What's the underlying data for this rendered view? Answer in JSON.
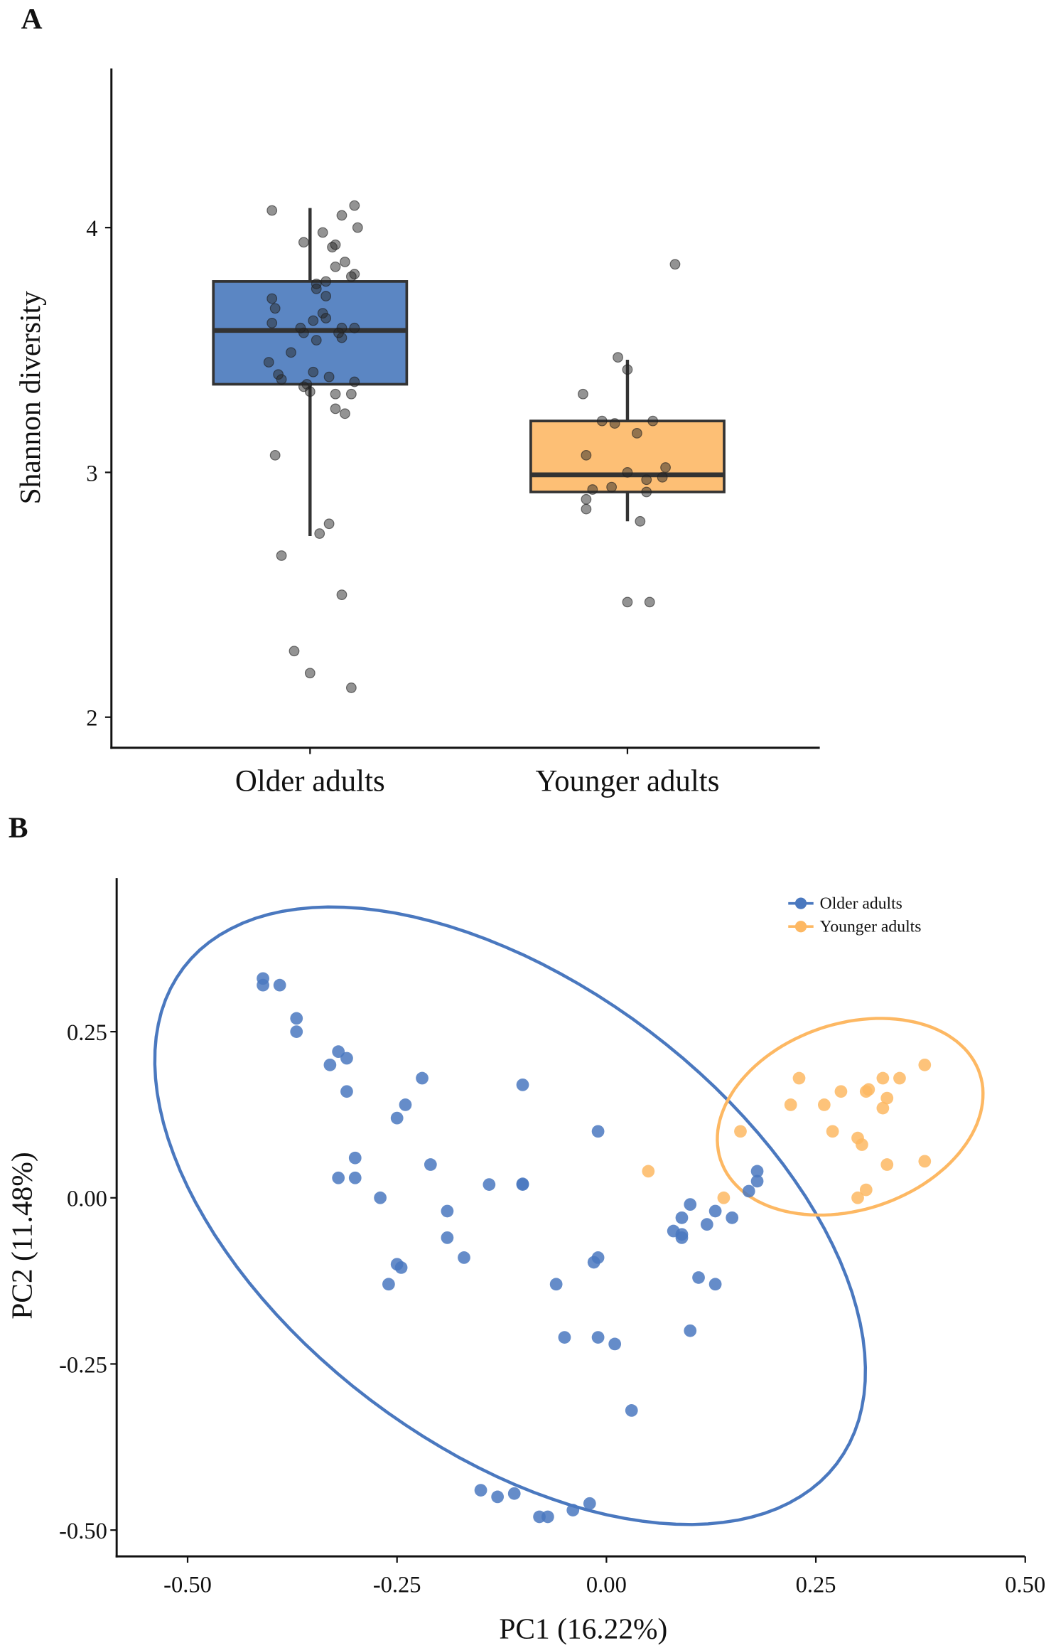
{
  "panel_labels": {
    "a": "A",
    "b": "B"
  },
  "chart_data": [
    {
      "type": "box",
      "panel": "A",
      "title": "",
      "xlabel": "",
      "ylabel": "Shannon diversity",
      "ylim": [
        1.875,
        4.65
      ],
      "yticks": [
        2,
        3,
        4
      ],
      "ytick_labels": [
        "2",
        "3",
        "4"
      ],
      "categories": [
        "Older adults",
        "Younger adults"
      ],
      "grid": false,
      "colors": {
        "Older adults": "#5b86c3",
        "Younger adults": "#fdbf75",
        "points": "#555555",
        "box_line": "#333333"
      },
      "boxes": [
        {
          "category": "Older adults",
          "whisker_low": 2.74,
          "q1": 3.36,
          "median": 3.58,
          "q3": 3.78,
          "whisker_high": 4.08
        },
        {
          "category": "Younger adults",
          "whisker_low": 2.8,
          "q1": 2.92,
          "median": 2.99,
          "q3": 3.21,
          "whisker_high": 3.46
        }
      ],
      "points": {
        "Older adults": [
          [
            -0.12,
            4.07
          ],
          [
            0.14,
            4.09
          ],
          [
            0.1,
            4.05
          ],
          [
            0.15,
            4.0
          ],
          [
            -0.02,
            3.94
          ],
          [
            0.04,
            3.98
          ],
          [
            0.07,
            3.92
          ],
          [
            0.08,
            3.93
          ],
          [
            0.11,
            3.86
          ],
          [
            0.08,
            3.84
          ],
          [
            0.14,
            3.81
          ],
          [
            0.13,
            3.8
          ],
          [
            0.05,
            3.78
          ],
          [
            0.02,
            3.77
          ],
          [
            0.02,
            3.75
          ],
          [
            -0.12,
            3.71
          ],
          [
            -0.11,
            3.67
          ],
          [
            0.05,
            3.72
          ],
          [
            0.04,
            3.65
          ],
          [
            0.01,
            3.62
          ],
          [
            -0.12,
            3.61
          ],
          [
            -0.02,
            3.57
          ],
          [
            -0.03,
            3.59
          ],
          [
            0.1,
            3.59
          ],
          [
            0.14,
            3.59
          ],
          [
            0.05,
            3.63
          ],
          [
            0.02,
            3.54
          ],
          [
            0.1,
            3.55
          ],
          [
            0.09,
            3.57
          ],
          [
            -0.06,
            3.49
          ],
          [
            -0.13,
            3.45
          ],
          [
            -0.1,
            3.4
          ],
          [
            -0.09,
            3.38
          ],
          [
            0.01,
            3.41
          ],
          [
            0.06,
            3.39
          ],
          [
            0.14,
            3.37
          ],
          [
            -0.01,
            3.36
          ],
          [
            -0.02,
            3.35
          ],
          [
            0.0,
            3.33
          ],
          [
            0.08,
            3.32
          ],
          [
            0.13,
            3.32
          ],
          [
            0.08,
            3.26
          ],
          [
            0.11,
            3.24
          ],
          [
            -0.11,
            3.07
          ],
          [
            0.06,
            2.79
          ],
          [
            0.03,
            2.75
          ],
          [
            -0.09,
            2.66
          ],
          [
            0.1,
            2.5
          ],
          [
            -0.05,
            2.27
          ],
          [
            0.0,
            2.18
          ],
          [
            0.13,
            2.12
          ]
        ],
        "Younger adults": [
          [
            0.15,
            3.85
          ],
          [
            -0.03,
            3.47
          ],
          [
            0.0,
            3.42
          ],
          [
            -0.14,
            3.32
          ],
          [
            -0.08,
            3.21
          ],
          [
            -0.04,
            3.2
          ],
          [
            0.08,
            3.21
          ],
          [
            0.03,
            3.16
          ],
          [
            -0.13,
            3.07
          ],
          [
            0.12,
            3.02
          ],
          [
            0.0,
            3.0
          ],
          [
            0.11,
            2.98
          ],
          [
            0.06,
            2.97
          ],
          [
            -0.05,
            2.94
          ],
          [
            -0.11,
            2.93
          ],
          [
            0.06,
            2.92
          ],
          [
            -0.13,
            2.89
          ],
          [
            -0.13,
            2.85
          ],
          [
            0.04,
            2.8
          ],
          [
            0.0,
            2.47
          ],
          [
            0.07,
            2.47
          ]
        ]
      }
    },
    {
      "type": "scatter",
      "panel": "B",
      "title": "",
      "xlabel": "PC1 (16.22%)",
      "ylabel": "PC2 (11.48%)",
      "xlim": [
        -0.585,
        0.5
      ],
      "ylim": [
        -0.538,
        0.48
      ],
      "xticks": [
        -0.5,
        -0.25,
        0,
        0.25,
        0.5
      ],
      "xtick_labels": [
        "-0.50",
        "-0.25",
        "0.00",
        "0.25",
        "0.50"
      ],
      "yticks": [
        -0.5,
        -0.25,
        0,
        0.25
      ],
      "ytick_labels": [
        "-0.50",
        "-0.25",
        "0.00",
        "0.25"
      ],
      "grid": false,
      "legend_position": "top-right",
      "series": [
        {
          "name": "Older adults",
          "color": "#4a78bf",
          "ellipse": {
            "center": [
              -0.115,
              -0.027
            ],
            "axis_a": [
              0.39,
              -0.373
            ],
            "axis_b": [
              -0.167,
              -0.277
            ]
          },
          "points": [
            [
              -0.41,
              0.33
            ],
            [
              -0.41,
              0.32
            ],
            [
              -0.39,
              0.32
            ],
            [
              -0.37,
              0.27
            ],
            [
              -0.37,
              0.25
            ],
            [
              -0.32,
              0.22
            ],
            [
              -0.31,
              0.21
            ],
            [
              -0.33,
              0.2
            ],
            [
              -0.22,
              0.18
            ],
            [
              -0.31,
              0.16
            ],
            [
              -0.1,
              0.17
            ],
            [
              -0.24,
              0.14
            ],
            [
              -0.25,
              0.12
            ],
            [
              -0.01,
              0.1
            ],
            [
              -0.3,
              0.06
            ],
            [
              -0.21,
              0.05
            ],
            [
              -0.3,
              0.03
            ],
            [
              -0.32,
              0.03
            ],
            [
              -0.14,
              0.02
            ],
            [
              -0.1,
              0.02
            ],
            [
              -0.1,
              0.021
            ],
            [
              -0.27,
              0.0
            ],
            [
              0.1,
              -0.01
            ],
            [
              -0.19,
              -0.02
            ],
            [
              0.13,
              -0.02
            ],
            [
              0.15,
              -0.03
            ],
            [
              0.09,
              -0.03
            ],
            [
              0.12,
              -0.04
            ],
            [
              0.08,
              -0.05
            ],
            [
              0.09,
              -0.055
            ],
            [
              0.09,
              -0.06
            ],
            [
              -0.19,
              -0.06
            ],
            [
              -0.17,
              -0.09
            ],
            [
              -0.01,
              -0.09
            ],
            [
              -0.015,
              -0.097
            ],
            [
              -0.25,
              -0.1
            ],
            [
              -0.245,
              -0.105
            ],
            [
              0.11,
              -0.12
            ],
            [
              0.13,
              -0.13
            ],
            [
              -0.26,
              -0.13
            ],
            [
              -0.06,
              -0.13
            ],
            [
              -0.05,
              -0.21
            ],
            [
              -0.01,
              -0.21
            ],
            [
              0.01,
              -0.22
            ],
            [
              0.1,
              -0.2
            ],
            [
              0.03,
              -0.32
            ],
            [
              -0.15,
              -0.44
            ],
            [
              -0.13,
              -0.45
            ],
            [
              -0.11,
              -0.445
            ],
            [
              -0.08,
              -0.48
            ],
            [
              -0.07,
              -0.48
            ],
            [
              -0.04,
              -0.47
            ],
            [
              -0.02,
              -0.46
            ],
            [
              0.18,
              0.04
            ],
            [
              0.18,
              0.025
            ],
            [
              0.17,
              0.01
            ]
          ]
        },
        {
          "name": "Younger adults",
          "color": "#fdb863",
          "ellipse": {
            "center": [
              0.291,
              0.122
            ],
            "axis_a": [
              0.1547,
              0.0649
            ],
            "axis_b": [
              0.035,
              -0.133
            ]
          },
          "points": [
            [
              0.05,
              0.04
            ],
            [
              0.14,
              0.0
            ],
            [
              0.16,
              0.1
            ],
            [
              0.23,
              0.18
            ],
            [
              0.22,
              0.14
            ],
            [
              0.26,
              0.14
            ],
            [
              0.28,
              0.16
            ],
            [
              0.31,
              0.16
            ],
            [
              0.313,
              0.163
            ],
            [
              0.33,
              0.18
            ],
            [
              0.35,
              0.18
            ],
            [
              0.335,
              0.15
            ],
            [
              0.33,
              0.135
            ],
            [
              0.38,
              0.2
            ],
            [
              0.27,
              0.1
            ],
            [
              0.3,
              0.09
            ],
            [
              0.305,
              0.08
            ],
            [
              0.335,
              0.05
            ],
            [
              0.38,
              0.055
            ],
            [
              0.31,
              0.012
            ],
            [
              0.3,
              0.0
            ]
          ]
        }
      ]
    }
  ]
}
